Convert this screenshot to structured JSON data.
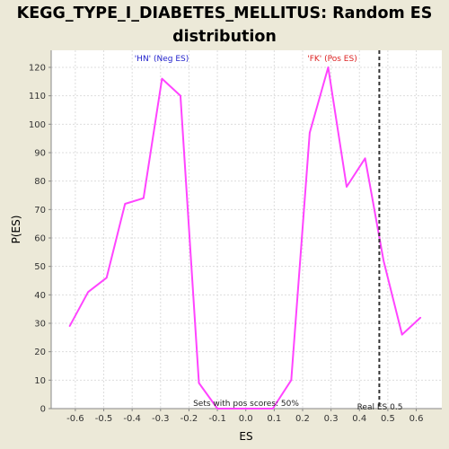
{
  "title_line1": "KEGG_TYPE_I_DIABETES_MELLITUS: Random ES",
  "title_line2": "distribution",
  "colors": {
    "background": "#ece9d8",
    "plot_bg": "#ffffff",
    "line": "#ff44ff",
    "neg_label": "#2222cc",
    "pos_label": "#dd2222",
    "grid": "#dddddd",
    "real_es_line": "#333333"
  },
  "chart_data": {
    "type": "line",
    "xlabel": "ES",
    "ylabel": "P(ES)",
    "xlim": [
      -0.685,
      0.69
    ],
    "ylim": [
      0,
      126
    ],
    "grid": true,
    "x_ticks": [
      -0.6,
      -0.5,
      -0.4,
      -0.3,
      -0.2,
      -0.1,
      0.0,
      0.1,
      0.2,
      0.3,
      0.4,
      0.5,
      0.6
    ],
    "x_tick_labels": [
      "-0.6",
      "-0.5",
      "-0.4",
      "-0.3",
      "-0.2",
      "-0.1",
      "0.0",
      "0.1",
      "0.2",
      "0.3",
      "0.4",
      "0.5",
      "0.6"
    ],
    "y_ticks": [
      0,
      10,
      20,
      30,
      40,
      50,
      60,
      70,
      80,
      90,
      100,
      110,
      120
    ],
    "y_tick_labels": [
      "0",
      "10",
      "20",
      "30",
      "40",
      "50",
      "60",
      "70",
      "80",
      "90",
      "100",
      "110",
      "120"
    ],
    "series": [
      {
        "x": [
          -0.62,
          -0.555,
          -0.49,
          -0.425,
          -0.36,
          -0.295,
          -0.23,
          -0.165,
          -0.1,
          -0.035,
          0.03,
          0.095,
          0.16,
          0.225,
          0.29,
          0.355,
          0.42,
          0.485,
          0.55,
          0.615
        ],
        "y": [
          29,
          41,
          46,
          72,
          74,
          116,
          110,
          9,
          0,
          0,
          0,
          0,
          10,
          97,
          120,
          78,
          88,
          52,
          26,
          32
        ]
      }
    ],
    "real_es": 0.47,
    "annotations": {
      "neg_label": "'HN' (Neg ES)",
      "pos_label": "'FK' (Pos ES)",
      "sets_text": "Sets with pos scores: 50%",
      "real_es_text": "Real ES 0.5"
    }
  }
}
